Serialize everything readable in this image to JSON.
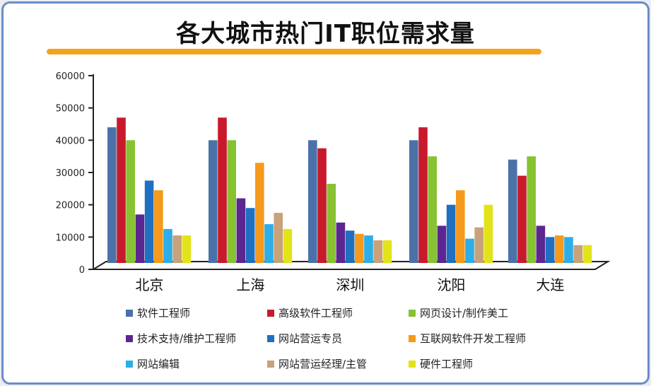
{
  "title": "各大城市热门IT职位需求量",
  "colors": {
    "title_underline": "#f5a21b",
    "frame": "#6c8cc6"
  },
  "chart_data": {
    "type": "bar",
    "title": "各大城市热门IT职位需求量",
    "xlabel": "",
    "ylabel": "",
    "ylim": [
      0,
      60000
    ],
    "yticks": [
      "0",
      "10000",
      "20000",
      "30000",
      "40000",
      "50000",
      "60000"
    ],
    "categories": [
      "北京",
      "上海",
      "深圳",
      "沈阳",
      "大连"
    ],
    "series": [
      {
        "name": "软件工程师",
        "color": "#4a72a8",
        "values": [
          44000,
          40000,
          40000,
          40000,
          34000
        ]
      },
      {
        "name": "高级软件工程师",
        "color": "#c81a2c",
        "values": [
          47000,
          47000,
          37500,
          44000,
          29000
        ]
      },
      {
        "name": "网页设计/制作美工",
        "color": "#86c232",
        "values": [
          40000,
          40000,
          26500,
          35000,
          35000
        ]
      },
      {
        "name": "技术支持/维护工程师",
        "color": "#5c2690",
        "values": [
          17000,
          22000,
          14500,
          13500,
          13500
        ]
      },
      {
        "name": "网站营运专员",
        "color": "#1f6fc2",
        "values": [
          27500,
          19000,
          12000,
          20000,
          10000
        ]
      },
      {
        "name": "互联网软件开发工程师",
        "color": "#f59a1c",
        "values": [
          24500,
          33000,
          11000,
          24500,
          10500
        ]
      },
      {
        "name": "网站编辑",
        "color": "#2eaee8",
        "values": [
          12500,
          14000,
          10500,
          9500,
          10000
        ]
      },
      {
        "name": "网站营运经理/主管",
        "color": "#c8a27a",
        "values": [
          10500,
          17500,
          9000,
          13000,
          7500
        ]
      },
      {
        "name": "硬件工程师",
        "color": "#e2e319",
        "values": [
          10500,
          12500,
          9000,
          20000,
          7500
        ]
      }
    ],
    "grid": false,
    "legend_position": "bottom"
  }
}
